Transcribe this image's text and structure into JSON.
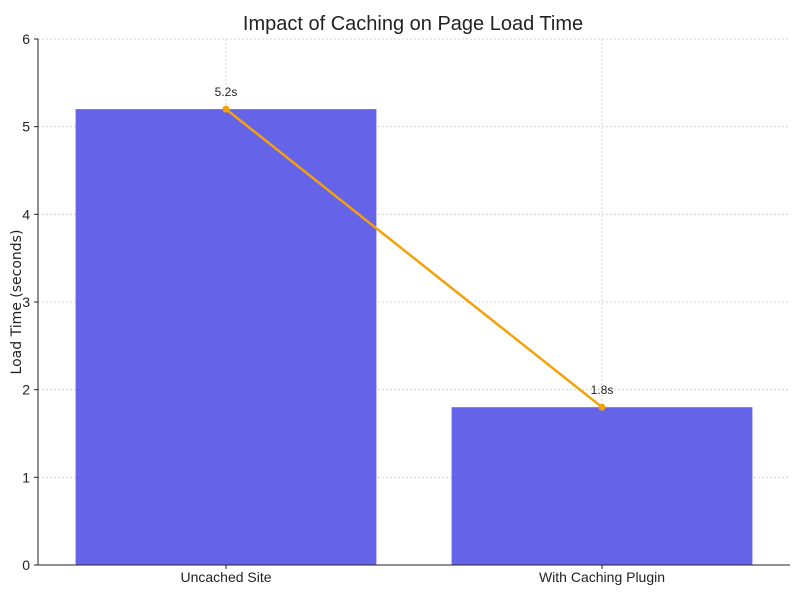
{
  "chart_data": {
    "type": "bar",
    "title": "Impact of Caching on Page Load Time",
    "xlabel": "",
    "ylabel": "Load Time (seconds)",
    "categories": [
      "Uncached Site",
      "With Caching Plugin"
    ],
    "values": [
      5.2,
      1.8
    ],
    "data_labels": [
      "5.2s",
      "1.8s"
    ],
    "ylim": [
      0,
      6
    ],
    "yticks": [
      0,
      1,
      2,
      3,
      4,
      5,
      6
    ],
    "grid": true,
    "overlay_line": {
      "type": "line",
      "values": [
        5.2,
        1.8
      ]
    },
    "colors": {
      "bar": "#6563e8",
      "line": "#f5a10a"
    }
  }
}
